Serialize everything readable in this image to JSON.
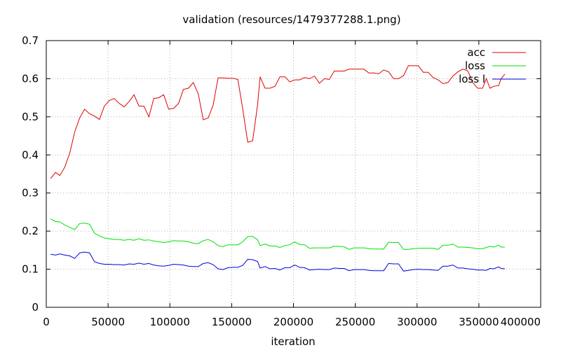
{
  "chart_data": {
    "type": "line",
    "title": "validation (resources/1479377288.1.png)",
    "xlabel": "iteration",
    "ylabel": "",
    "xlim": [
      0,
      400000
    ],
    "ylim": [
      0,
      0.7
    ],
    "xticks": [
      0,
      50000,
      100000,
      150000,
      200000,
      250000,
      300000,
      350000,
      400000
    ],
    "yticks": [
      0,
      0.1,
      0.2,
      0.3,
      0.4,
      0.5,
      0.6,
      0.7
    ],
    "xtick_labels": [
      "0",
      "50000",
      "100000",
      "150000",
      "200000",
      "250000",
      "300000",
      "350000",
      "400000"
    ],
    "ytick_labels": [
      "0",
      "0.1",
      "0.2",
      "0.3",
      "0.4",
      "0.5",
      "0.6",
      "0.7"
    ],
    "grid": true,
    "legend_position": "top-right",
    "series": [
      {
        "name": "acc",
        "color": "#e00000",
        "points": [
          [
            3500,
            0.338
          ],
          [
            7500,
            0.354
          ],
          [
            11000,
            0.346
          ],
          [
            15000,
            0.368
          ],
          [
            19000,
            0.405
          ],
          [
            23000,
            0.46
          ],
          [
            27000,
            0.497
          ],
          [
            31000,
            0.52
          ],
          [
            35000,
            0.508
          ],
          [
            39000,
            0.502
          ],
          [
            43000,
            0.493
          ],
          [
            47000,
            0.528
          ],
          [
            51000,
            0.543
          ],
          [
            55000,
            0.548
          ],
          [
            59000,
            0.535
          ],
          [
            63000,
            0.526
          ],
          [
            67000,
            0.54
          ],
          [
            71000,
            0.558
          ],
          [
            75000,
            0.528
          ],
          [
            79000,
            0.528
          ],
          [
            83000,
            0.5
          ],
          [
            87000,
            0.548
          ],
          [
            91000,
            0.55
          ],
          [
            95000,
            0.558
          ],
          [
            99000,
            0.52
          ],
          [
            103000,
            0.522
          ],
          [
            107000,
            0.535
          ],
          [
            111000,
            0.572
          ],
          [
            115000,
            0.575
          ],
          [
            119000,
            0.59
          ],
          [
            123000,
            0.56
          ],
          [
            127000,
            0.492
          ],
          [
            131000,
            0.497
          ],
          [
            135000,
            0.53
          ],
          [
            139000,
            0.602
          ],
          [
            143000,
            0.602
          ],
          [
            147000,
            0.601
          ],
          [
            151000,
            0.601
          ],
          [
            155000,
            0.598
          ],
          [
            159000,
            0.52
          ],
          [
            163000,
            0.433
          ],
          [
            167000,
            0.437
          ],
          [
            171000,
            0.533
          ],
          [
            173000,
            0.605
          ],
          [
            177000,
            0.575
          ],
          [
            181000,
            0.575
          ],
          [
            185000,
            0.58
          ],
          [
            189000,
            0.605
          ],
          [
            193000,
            0.605
          ],
          [
            197000,
            0.592
          ],
          [
            201000,
            0.597
          ],
          [
            205000,
            0.597
          ],
          [
            209000,
            0.603
          ],
          [
            213000,
            0.6
          ],
          [
            217000,
            0.607
          ],
          [
            221000,
            0.588
          ],
          [
            225000,
            0.6
          ],
          [
            229000,
            0.598
          ],
          [
            233000,
            0.62
          ],
          [
            237000,
            0.62
          ],
          [
            241000,
            0.62
          ],
          [
            245000,
            0.625
          ],
          [
            249000,
            0.625
          ],
          [
            253000,
            0.625
          ],
          [
            257000,
            0.625
          ],
          [
            261000,
            0.615
          ],
          [
            265000,
            0.615
          ],
          [
            269000,
            0.613
          ],
          [
            273000,
            0.623
          ],
          [
            277000,
            0.618
          ],
          [
            281000,
            0.6
          ],
          [
            285000,
            0.6
          ],
          [
            289000,
            0.608
          ],
          [
            293000,
            0.634
          ],
          [
            297000,
            0.634
          ],
          [
            301000,
            0.634
          ],
          [
            305000,
            0.617
          ],
          [
            309000,
            0.617
          ],
          [
            313000,
            0.603
          ],
          [
            317000,
            0.597
          ],
          [
            321000,
            0.587
          ],
          [
            325000,
            0.59
          ],
          [
            329000,
            0.607
          ],
          [
            333000,
            0.618
          ],
          [
            337000,
            0.625
          ],
          [
            341000,
            0.621
          ],
          [
            345000,
            0.59
          ],
          [
            349000,
            0.575
          ],
          [
            353000,
            0.575
          ],
          [
            356000,
            0.6
          ],
          [
            359000,
            0.575
          ],
          [
            362000,
            0.58
          ],
          [
            366000,
            0.582
          ],
          [
            368000,
            0.6
          ],
          [
            371000,
            0.612
          ]
        ]
      },
      {
        "name": "loss",
        "color": "#00e000",
        "points": [
          [
            3500,
            0.232
          ],
          [
            7500,
            0.225
          ],
          [
            11000,
            0.224
          ],
          [
            15000,
            0.216
          ],
          [
            19000,
            0.21
          ],
          [
            23000,
            0.204
          ],
          [
            27000,
            0.22
          ],
          [
            31000,
            0.221
          ],
          [
            35000,
            0.218
          ],
          [
            39000,
            0.195
          ],
          [
            43000,
            0.187
          ],
          [
            47000,
            0.182
          ],
          [
            51000,
            0.18
          ],
          [
            55000,
            0.178
          ],
          [
            59000,
            0.178
          ],
          [
            63000,
            0.176
          ],
          [
            67000,
            0.178
          ],
          [
            71000,
            0.176
          ],
          [
            75000,
            0.18
          ],
          [
            79000,
            0.176
          ],
          [
            83000,
            0.177
          ],
          [
            87000,
            0.174
          ],
          [
            91000,
            0.172
          ],
          [
            95000,
            0.17
          ],
          [
            99000,
            0.172
          ],
          [
            103000,
            0.175
          ],
          [
            107000,
            0.174
          ],
          [
            111000,
            0.174
          ],
          [
            115000,
            0.172
          ],
          [
            119000,
            0.168
          ],
          [
            123000,
            0.167
          ],
          [
            127000,
            0.175
          ],
          [
            131000,
            0.178
          ],
          [
            135000,
            0.172
          ],
          [
            139000,
            0.162
          ],
          [
            143000,
            0.159
          ],
          [
            147000,
            0.164
          ],
          [
            151000,
            0.164
          ],
          [
            155000,
            0.164
          ],
          [
            159000,
            0.172
          ],
          [
            163000,
            0.186
          ],
          [
            167000,
            0.186
          ],
          [
            171000,
            0.177
          ],
          [
            173000,
            0.162
          ],
          [
            177000,
            0.166
          ],
          [
            181000,
            0.161
          ],
          [
            185000,
            0.161
          ],
          [
            189000,
            0.157
          ],
          [
            193000,
            0.162
          ],
          [
            197000,
            0.164
          ],
          [
            201000,
            0.172
          ],
          [
            205000,
            0.165
          ],
          [
            209000,
            0.164
          ],
          [
            213000,
            0.155
          ],
          [
            217000,
            0.156
          ],
          [
            221000,
            0.156
          ],
          [
            225000,
            0.156
          ],
          [
            229000,
            0.156
          ],
          [
            233000,
            0.16
          ],
          [
            237000,
            0.16
          ],
          [
            241000,
            0.159
          ],
          [
            245000,
            0.152
          ],
          [
            249000,
            0.156
          ],
          [
            253000,
            0.156
          ],
          [
            257000,
            0.156
          ],
          [
            261000,
            0.154
          ],
          [
            265000,
            0.153
          ],
          [
            269000,
            0.153
          ],
          [
            273000,
            0.153
          ],
          [
            277000,
            0.171
          ],
          [
            281000,
            0.17
          ],
          [
            285000,
            0.17
          ],
          [
            289000,
            0.152
          ],
          [
            293000,
            0.152
          ],
          [
            297000,
            0.154
          ],
          [
            301000,
            0.155
          ],
          [
            305000,
            0.155
          ],
          [
            309000,
            0.155
          ],
          [
            313000,
            0.155
          ],
          [
            317000,
            0.152
          ],
          [
            321000,
            0.163
          ],
          [
            325000,
            0.163
          ],
          [
            329000,
            0.166
          ],
          [
            333000,
            0.158
          ],
          [
            337000,
            0.158
          ],
          [
            341000,
            0.157
          ],
          [
            345000,
            0.156
          ],
          [
            349000,
            0.154
          ],
          [
            353000,
            0.154
          ],
          [
            356000,
            0.157
          ],
          [
            359000,
            0.16
          ],
          [
            362000,
            0.158
          ],
          [
            366000,
            0.163
          ],
          [
            368000,
            0.158
          ],
          [
            371000,
            0.158
          ]
        ]
      },
      {
        "name": "loss l",
        "color": "#0000e0",
        "points": [
          [
            3500,
            0.139
          ],
          [
            7500,
            0.137
          ],
          [
            11000,
            0.14
          ],
          [
            15000,
            0.137
          ],
          [
            19000,
            0.135
          ],
          [
            23000,
            0.128
          ],
          [
            27000,
            0.143
          ],
          [
            31000,
            0.145
          ],
          [
            35000,
            0.143
          ],
          [
            39000,
            0.12
          ],
          [
            43000,
            0.115
          ],
          [
            47000,
            0.113
          ],
          [
            51000,
            0.113
          ],
          [
            55000,
            0.112
          ],
          [
            59000,
            0.112
          ],
          [
            63000,
            0.111
          ],
          [
            67000,
            0.114
          ],
          [
            71000,
            0.113
          ],
          [
            75000,
            0.116
          ],
          [
            79000,
            0.113
          ],
          [
            83000,
            0.115
          ],
          [
            87000,
            0.111
          ],
          [
            91000,
            0.109
          ],
          [
            95000,
            0.108
          ],
          [
            99000,
            0.11
          ],
          [
            103000,
            0.113
          ],
          [
            107000,
            0.112
          ],
          [
            111000,
            0.111
          ],
          [
            115000,
            0.108
          ],
          [
            119000,
            0.107
          ],
          [
            123000,
            0.107
          ],
          [
            127000,
            0.115
          ],
          [
            131000,
            0.117
          ],
          [
            135000,
            0.112
          ],
          [
            139000,
            0.101
          ],
          [
            143000,
            0.099
          ],
          [
            147000,
            0.104
          ],
          [
            151000,
            0.105
          ],
          [
            155000,
            0.105
          ],
          [
            159000,
            0.11
          ],
          [
            163000,
            0.126
          ],
          [
            167000,
            0.125
          ],
          [
            171000,
            0.12
          ],
          [
            173000,
            0.103
          ],
          [
            177000,
            0.107
          ],
          [
            181000,
            0.101
          ],
          [
            185000,
            0.102
          ],
          [
            189000,
            0.098
          ],
          [
            193000,
            0.104
          ],
          [
            197000,
            0.104
          ],
          [
            201000,
            0.111
          ],
          [
            205000,
            0.105
          ],
          [
            209000,
            0.104
          ],
          [
            213000,
            0.098
          ],
          [
            217000,
            0.099
          ],
          [
            221000,
            0.1
          ],
          [
            225000,
            0.099
          ],
          [
            229000,
            0.099
          ],
          [
            233000,
            0.103
          ],
          [
            237000,
            0.102
          ],
          [
            241000,
            0.102
          ],
          [
            245000,
            0.096
          ],
          [
            249000,
            0.099
          ],
          [
            253000,
            0.099
          ],
          [
            257000,
            0.099
          ],
          [
            261000,
            0.097
          ],
          [
            265000,
            0.096
          ],
          [
            269000,
            0.096
          ],
          [
            273000,
            0.096
          ],
          [
            277000,
            0.115
          ],
          [
            281000,
            0.114
          ],
          [
            285000,
            0.114
          ],
          [
            289000,
            0.095
          ],
          [
            293000,
            0.097
          ],
          [
            297000,
            0.099
          ],
          [
            301000,
            0.1
          ],
          [
            305000,
            0.099
          ],
          [
            309000,
            0.099
          ],
          [
            313000,
            0.098
          ],
          [
            317000,
            0.097
          ],
          [
            321000,
            0.108
          ],
          [
            325000,
            0.108
          ],
          [
            329000,
            0.111
          ],
          [
            333000,
            0.103
          ],
          [
            337000,
            0.103
          ],
          [
            341000,
            0.101
          ],
          [
            345000,
            0.1
          ],
          [
            349000,
            0.098
          ],
          [
            353000,
            0.098
          ],
          [
            356000,
            0.097
          ],
          [
            359000,
            0.102
          ],
          [
            362000,
            0.101
          ],
          [
            366000,
            0.106
          ],
          [
            368000,
            0.102
          ],
          [
            371000,
            0.101
          ]
        ]
      }
    ]
  }
}
